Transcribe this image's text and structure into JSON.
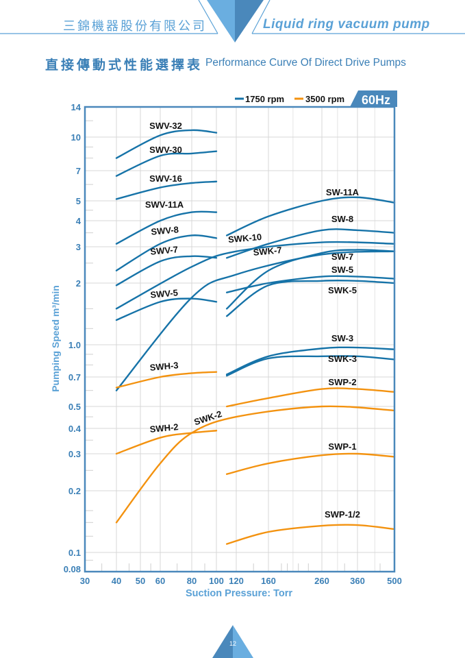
{
  "header": {
    "company_name": "三錦機器股份有限公司",
    "tagline": "Liquid ring vacuum pump",
    "accent_color": "#5aa1d6",
    "accent_dark": "#3a7fb6"
  },
  "page_title": {
    "chinese": "直接傳動式性能選擇表",
    "english": "Performance Curve Of Direct Drive Pumps"
  },
  "footer": {
    "page_number": "12"
  },
  "chart_data": {
    "type": "line",
    "title": "Performance Curve Of Direct Drive Pumps",
    "frequency_badge": "60Hz",
    "xlabel": "Suction Pressure: Torr",
    "ylabel": "Pumping Speed m³/min",
    "xscale": "log",
    "yscale": "log",
    "xlim": [
      30,
      500
    ],
    "ylim": [
      0.08,
      14
    ],
    "x_ticks": [
      30,
      40,
      50,
      60,
      80,
      100,
      120,
      160,
      260,
      360,
      500
    ],
    "y_ticks": [
      0.08,
      0.1,
      0.2,
      0.3,
      0.4,
      0.5,
      0.7,
      1.0,
      2,
      3,
      4,
      5,
      7,
      10,
      14
    ],
    "y_tick_labels": [
      "0.08",
      "0.1",
      "0.2",
      "0.3",
      "0.4",
      "0.5",
      "0.7",
      "1.0",
      "2",
      "3",
      "4",
      "5",
      "7",
      "10",
      "14"
    ],
    "grid": true,
    "legend": {
      "placement": "top-right",
      "entries": [
        {
          "label": "1750 rpm",
          "color": "#1673a8"
        },
        {
          "label": "3500 rpm",
          "color": "#f3920f"
        }
      ]
    },
    "series": [
      {
        "name": "SWV-32",
        "rpm": "1750 rpm",
        "points": [
          [
            40,
            8.0
          ],
          [
            60,
            10.2
          ],
          [
            80,
            10.8
          ],
          [
            100,
            10.5
          ]
        ]
      },
      {
        "name": "SWV-30",
        "rpm": "1750 rpm",
        "points": [
          [
            40,
            6.6
          ],
          [
            60,
            8.2
          ],
          [
            80,
            8.4
          ],
          [
            100,
            8.6
          ]
        ]
      },
      {
        "name": "SWV-16",
        "rpm": "1750 rpm",
        "points": [
          [
            40,
            5.1
          ],
          [
            60,
            5.8
          ],
          [
            80,
            6.1
          ],
          [
            100,
            6.2
          ]
        ]
      },
      {
        "name": "SWV-11A",
        "rpm": "1750 rpm",
        "points": [
          [
            40,
            3.1
          ],
          [
            60,
            4.0
          ],
          [
            80,
            4.4
          ],
          [
            100,
            4.4
          ]
        ]
      },
      {
        "name": "SWV-8",
        "rpm": "1750 rpm",
        "points": [
          [
            40,
            2.3
          ],
          [
            60,
            3.1
          ],
          [
            80,
            3.4
          ],
          [
            100,
            3.3
          ]
        ]
      },
      {
        "name": "SWV-7",
        "rpm": "1750 rpm",
        "points": [
          [
            40,
            1.95
          ],
          [
            60,
            2.55
          ],
          [
            80,
            2.7
          ],
          [
            100,
            2.65
          ]
        ]
      },
      {
        "name": "SWV-5",
        "rpm": "1750 rpm",
        "points": [
          [
            40,
            1.32
          ],
          [
            60,
            1.62
          ],
          [
            80,
            1.68
          ],
          [
            100,
            1.62
          ]
        ]
      },
      {
        "name": "SWK-10",
        "rpm": "1750 rpm",
        "points": [
          [
            40,
            1.5
          ],
          [
            80,
            2.4
          ],
          [
            120,
            2.85
          ],
          [
            260,
            3.15
          ],
          [
            500,
            3.1
          ]
        ]
      },
      {
        "name": "SWK-7",
        "rpm": "1750 rpm",
        "points": [
          [
            40,
            0.6
          ],
          [
            80,
            1.7
          ],
          [
            120,
            2.2
          ],
          [
            260,
            2.75
          ],
          [
            500,
            2.85
          ]
        ]
      },
      {
        "name": "SW-11A",
        "rpm": "1750 rpm",
        "points": [
          [
            110,
            3.4
          ],
          [
            160,
            4.2
          ],
          [
            260,
            5.0
          ],
          [
            360,
            5.2
          ],
          [
            500,
            4.9
          ]
        ]
      },
      {
        "name": "SW-8",
        "rpm": "1750 rpm",
        "points": [
          [
            110,
            2.65
          ],
          [
            160,
            3.1
          ],
          [
            260,
            3.6
          ],
          [
            360,
            3.6
          ],
          [
            500,
            3.5
          ]
        ]
      },
      {
        "name": "SW-7",
        "rpm": "1750 rpm",
        "points": [
          [
            110,
            1.5
          ],
          [
            160,
            2.3
          ],
          [
            260,
            2.8
          ],
          [
            360,
            2.9
          ],
          [
            500,
            2.85
          ]
        ]
      },
      {
        "name": "SW-5",
        "rpm": "1750 rpm",
        "points": [
          [
            110,
            1.8
          ],
          [
            160,
            2.0
          ],
          [
            260,
            2.15
          ],
          [
            360,
            2.15
          ],
          [
            500,
            2.1
          ]
        ]
      },
      {
        "name": "SWK-5",
        "rpm": "1750 rpm",
        "points": [
          [
            110,
            1.38
          ],
          [
            160,
            1.95
          ],
          [
            260,
            2.05
          ],
          [
            360,
            2.05
          ],
          [
            500,
            2.0
          ]
        ]
      },
      {
        "name": "SW-3",
        "rpm": "1750 rpm",
        "points": [
          [
            110,
            0.72
          ],
          [
            160,
            0.88
          ],
          [
            260,
            0.96
          ],
          [
            360,
            0.97
          ],
          [
            500,
            0.95
          ]
        ]
      },
      {
        "name": "SWK-3",
        "rpm": "1750 rpm",
        "points": [
          [
            110,
            0.71
          ],
          [
            160,
            0.86
          ],
          [
            260,
            0.88
          ],
          [
            360,
            0.88
          ],
          [
            500,
            0.85
          ]
        ]
      },
      {
        "name": "SWH-3",
        "rpm": "3500 rpm",
        "points": [
          [
            40,
            0.62
          ],
          [
            60,
            0.7
          ],
          [
            80,
            0.73
          ],
          [
            100,
            0.74
          ]
        ]
      },
      {
        "name": "SWH-2",
        "rpm": "3500 rpm",
        "points": [
          [
            40,
            0.3
          ],
          [
            60,
            0.36
          ],
          [
            80,
            0.38
          ],
          [
            100,
            0.39
          ]
        ]
      },
      {
        "name": "SWK-2",
        "rpm": "3500 rpm",
        "points": [
          [
            40,
            0.14
          ],
          [
            60,
            0.27
          ],
          [
            80,
            0.38
          ],
          [
            120,
            0.45
          ],
          [
            260,
            0.5
          ],
          [
            500,
            0.48
          ]
        ]
      },
      {
        "name": "SWP-2",
        "rpm": "3500 rpm",
        "points": [
          [
            110,
            0.5
          ],
          [
            160,
            0.55
          ],
          [
            260,
            0.61
          ],
          [
            360,
            0.61
          ],
          [
            500,
            0.59
          ]
        ]
      },
      {
        "name": "SWP-1",
        "rpm": "3500 rpm",
        "points": [
          [
            110,
            0.24
          ],
          [
            160,
            0.27
          ],
          [
            260,
            0.295
          ],
          [
            360,
            0.3
          ],
          [
            500,
            0.29
          ]
        ]
      },
      {
        "name": "SWP-1/2",
        "rpm": "3500 rpm",
        "points": [
          [
            110,
            0.11
          ],
          [
            160,
            0.126
          ],
          [
            260,
            0.135
          ],
          [
            360,
            0.136
          ],
          [
            500,
            0.13
          ]
        ]
      }
    ]
  }
}
